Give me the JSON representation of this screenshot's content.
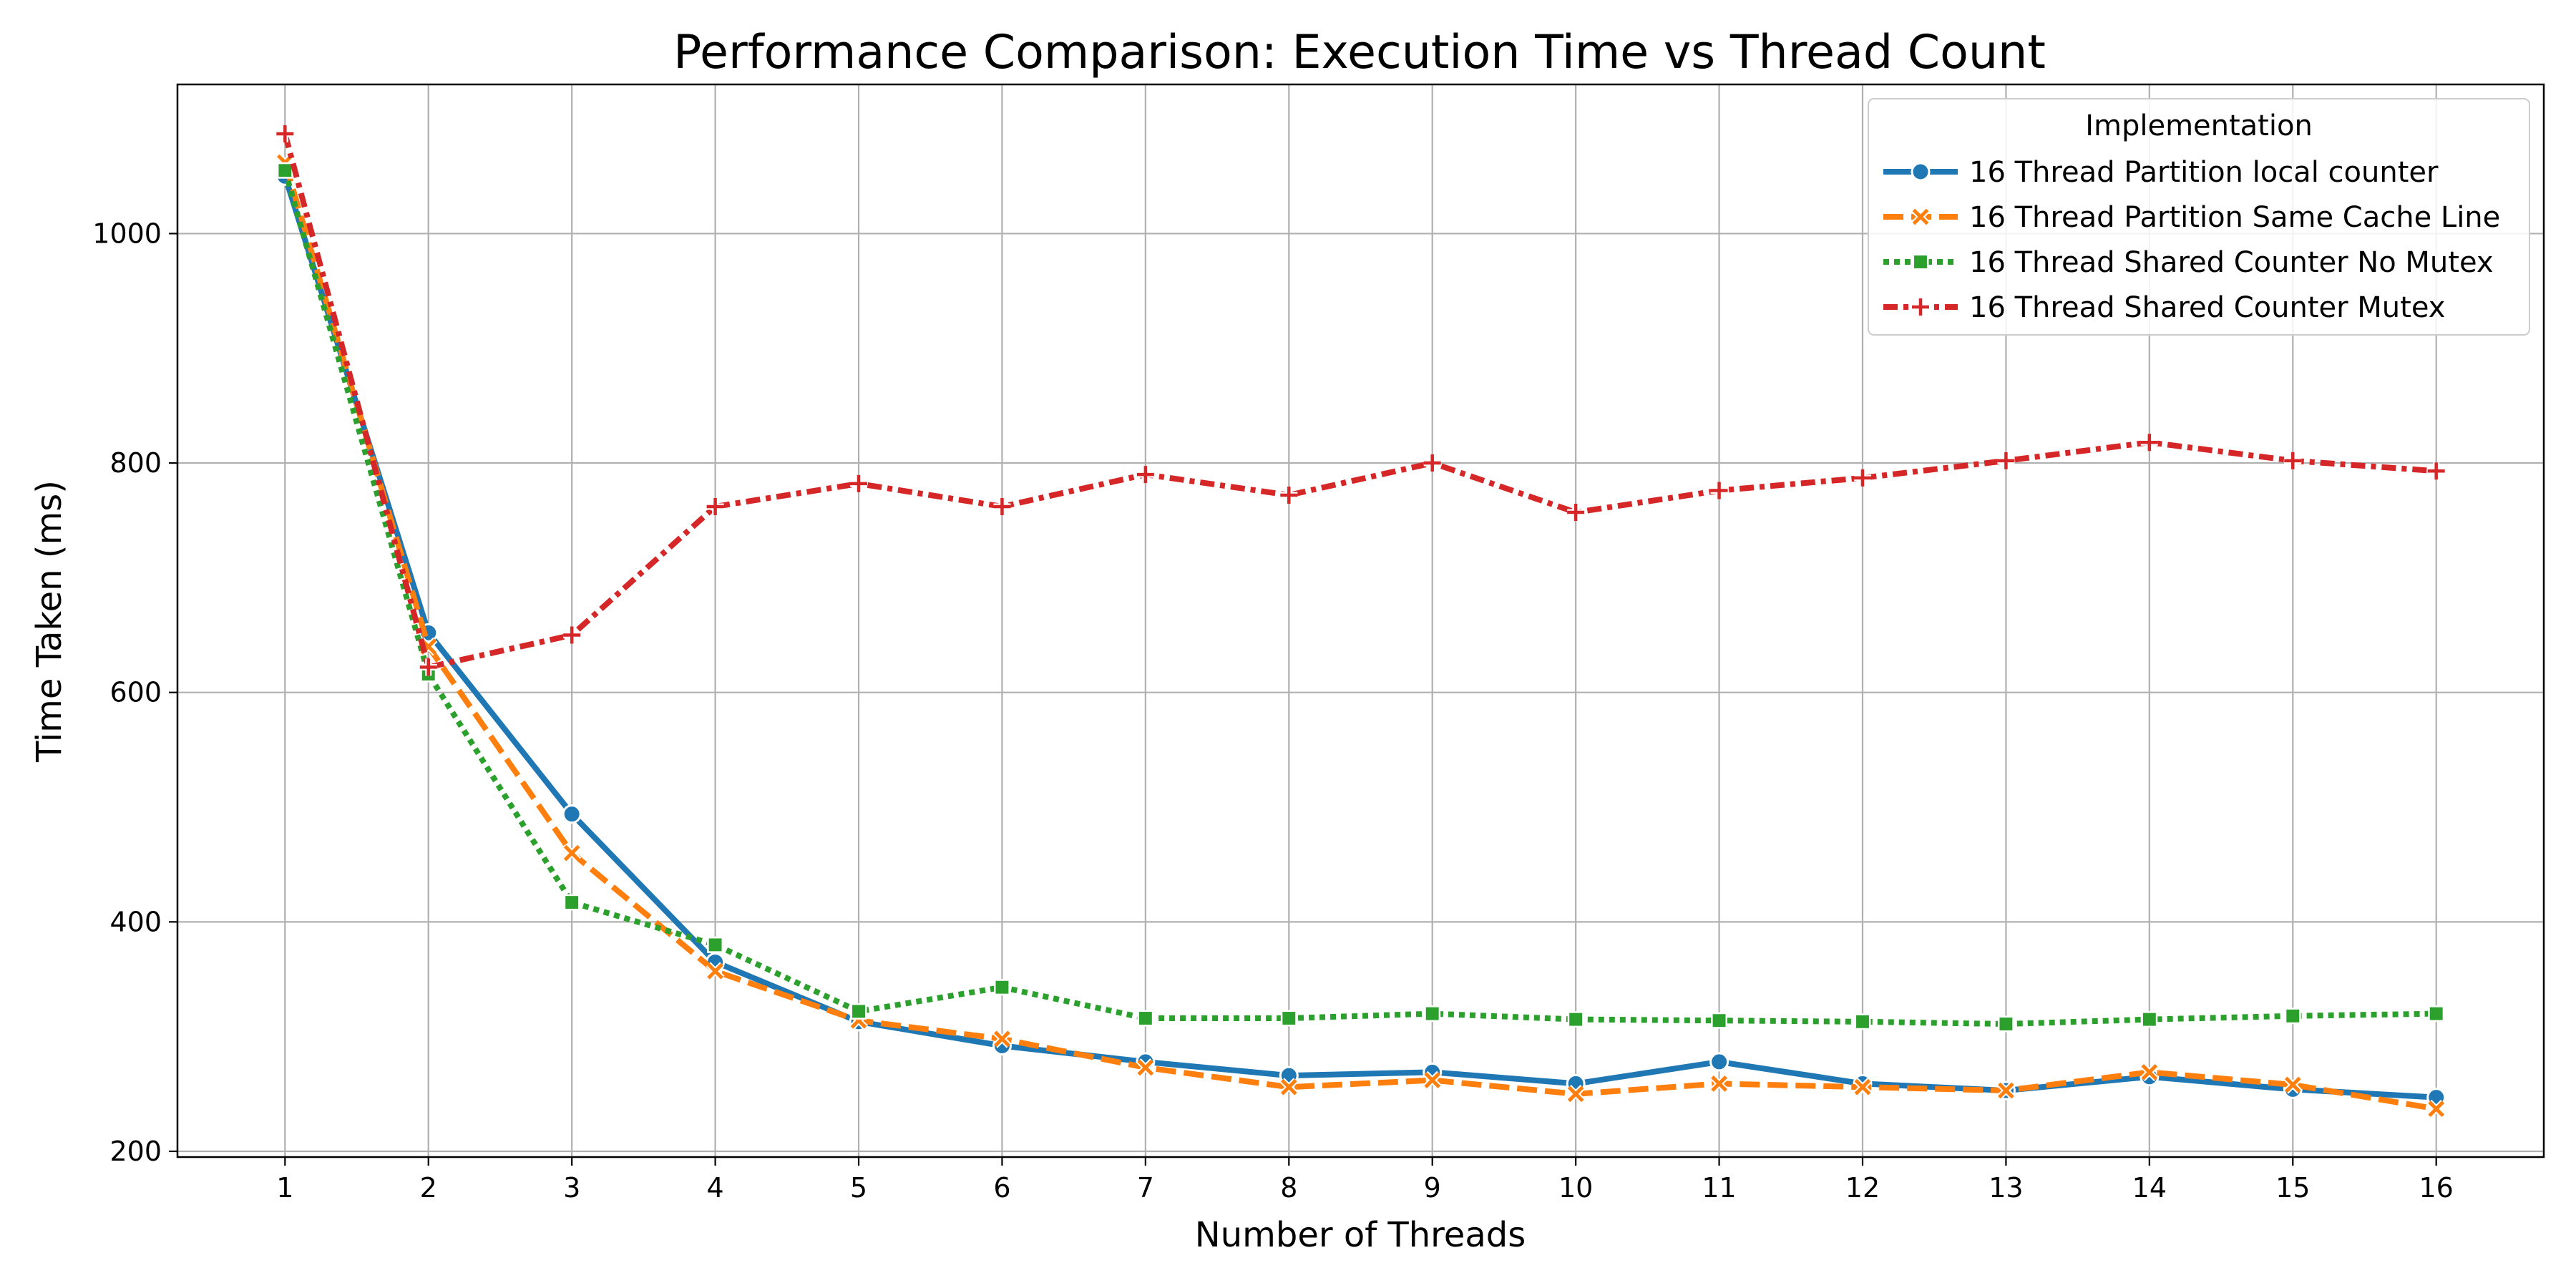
{
  "chart_data": {
    "type": "line",
    "title": "Performance Comparison: Execution Time vs Thread Count",
    "xlabel": "Number of Threads",
    "ylabel": "Time Taken (ms)",
    "x": [
      1,
      2,
      3,
      4,
      5,
      6,
      7,
      8,
      9,
      10,
      11,
      12,
      13,
      14,
      15,
      16
    ],
    "xlim": [
      0.25,
      16.75
    ],
    "ylim": [
      195,
      1130
    ],
    "yticks": [
      200,
      400,
      600,
      800,
      1000
    ],
    "grid": true,
    "legend": {
      "title": "Implementation",
      "placement": "top-right"
    },
    "series": [
      {
        "name": "16 Thread Partition local counter",
        "color": "#1f77b4",
        "dash": "solid",
        "marker": "circle",
        "values": [
          1050,
          652,
          494,
          365,
          313,
          292,
          278,
          266,
          269,
          259,
          278,
          259,
          253,
          265,
          254,
          247
        ]
      },
      {
        "name": "16 Thread Partition Same Cache Line",
        "color": "#ff7f0e",
        "dash": "dashed",
        "marker": "x",
        "values": [
          1062,
          640,
          460,
          357,
          314,
          298,
          273,
          256,
          262,
          250,
          259,
          256,
          253,
          269,
          258,
          237
        ]
      },
      {
        "name": "16 Thread Shared Counter No Mutex",
        "color": "#2ca02c",
        "dash": "dotted",
        "marker": "square",
        "values": [
          1055,
          616,
          417,
          380,
          322,
          343,
          316,
          316,
          320,
          315,
          314,
          313,
          311,
          315,
          318,
          320
        ]
      },
      {
        "name": "16 Thread Shared Counter Mutex",
        "color": "#d62728",
        "dash": "dashdot",
        "marker": "plus",
        "values": [
          1087,
          622,
          650,
          762,
          782,
          762,
          790,
          772,
          800,
          757,
          776,
          787,
          802,
          818,
          802,
          793
        ]
      }
    ]
  }
}
